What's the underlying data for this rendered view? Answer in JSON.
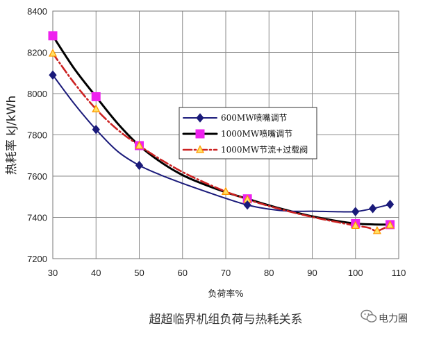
{
  "chart_data": {
    "type": "line",
    "title": "超超临界机组负荷与热耗关系",
    "xlabel": "负荷率%",
    "ylabel": "热耗率 kJ/kWh",
    "xlim": [
      30,
      110
    ],
    "ylim": [
      7200,
      8400
    ],
    "x_ticks": [
      30,
      40,
      50,
      60,
      70,
      80,
      90,
      100,
      110
    ],
    "y_ticks": [
      7200,
      7400,
      7600,
      7800,
      8000,
      8200,
      8400
    ],
    "grid": true,
    "legend_position": "center-right",
    "series": [
      {
        "name": "600MW喷嘴调节",
        "color": "#1a1a7a",
        "marker": "diamond",
        "line": "solid",
        "points": [
          [
            30,
            8090
          ],
          [
            40,
            7826
          ],
          [
            50,
            7652
          ],
          [
            75,
            7460
          ],
          [
            100,
            7428
          ],
          [
            104,
            7443
          ],
          [
            108,
            7463
          ]
        ],
        "curve_x": [
          30,
          35,
          40,
          45,
          50,
          55,
          60,
          65,
          70,
          75,
          80,
          85,
          90,
          95,
          100,
          104,
          108
        ],
        "curve_y": [
          8090,
          7950,
          7826,
          7720,
          7652,
          7605,
          7565,
          7528,
          7492,
          7460,
          7440,
          7430,
          7430,
          7428,
          7428,
          7443,
          7463
        ]
      },
      {
        "name": "1000MW喷嘴调节",
        "color": "#000000",
        "marker": "square",
        "marker_color": "#ee22ee",
        "line": "solid",
        "points": [
          [
            30,
            8280
          ],
          [
            40,
            7985
          ],
          [
            50,
            7748
          ],
          [
            75,
            7490
          ],
          [
            100,
            7370
          ],
          [
            108,
            7365
          ]
        ],
        "curve_x": [
          30,
          35,
          40,
          45,
          50,
          55,
          60,
          65,
          70,
          75,
          80,
          85,
          90,
          95,
          100,
          104,
          108
        ],
        "curve_y": [
          8280,
          8120,
          7985,
          7855,
          7748,
          7668,
          7605,
          7560,
          7522,
          7490,
          7458,
          7430,
          7405,
          7385,
          7370,
          7366,
          7365
        ]
      },
      {
        "name": "1000MW节流+过载阀",
        "color": "#cc2222",
        "marker": "triangle",
        "marker_color": "#ff9900",
        "line": "dashdot",
        "points": [
          [
            30,
            8195
          ],
          [
            40,
            7925
          ],
          [
            50,
            7748
          ],
          [
            70,
            7525
          ],
          [
            75,
            7487
          ],
          [
            100,
            7360
          ],
          [
            105,
            7335
          ],
          [
            108,
            7362
          ]
        ],
        "curve_x": [
          30,
          35,
          40,
          45,
          50,
          55,
          60,
          65,
          70,
          75,
          80,
          85,
          90,
          95,
          100,
          103,
          105,
          108
        ],
        "curve_y": [
          8195,
          8050,
          7925,
          7825,
          7748,
          7680,
          7620,
          7570,
          7525,
          7487,
          7455,
          7427,
          7402,
          7380,
          7360,
          7350,
          7335,
          7362
        ]
      }
    ]
  },
  "watermark": {
    "icon": "wechat-icon",
    "text": "电力圈"
  }
}
